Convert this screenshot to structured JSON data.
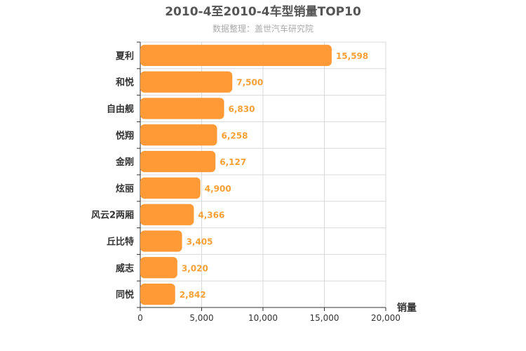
{
  "chart_data": {
    "type": "bar",
    "orientation": "horizontal",
    "title": "2010-4至2010-4车型销量TOP10",
    "subtitle": "数据整理：盖世汽车研究院",
    "categories": [
      "夏利",
      "和悦",
      "自由舰",
      "悦翔",
      "金刚",
      "炫丽",
      "风云2两厢",
      "丘比特",
      "威志",
      "同悦"
    ],
    "values": [
      15598,
      7500,
      6830,
      6258,
      6127,
      4900,
      4366,
      3405,
      3020,
      2842
    ],
    "value_labels": [
      "15,598",
      "7,500",
      "6,830",
      "6,258",
      "6,127",
      "4,900",
      "4,366",
      "3,405",
      "3,020",
      "2,842"
    ],
    "xlabel": "销量",
    "xlim": [
      0,
      20000
    ],
    "xticks": [
      0,
      5000,
      10000,
      15000,
      20000
    ],
    "xtick_labels": [
      "0",
      "5,000",
      "10,000",
      "15,000",
      "20,000"
    ],
    "grid": true,
    "colors": {
      "bar": "#ff9a36",
      "value_label": "#f7a035",
      "grid": "#d9d9d9"
    }
  }
}
